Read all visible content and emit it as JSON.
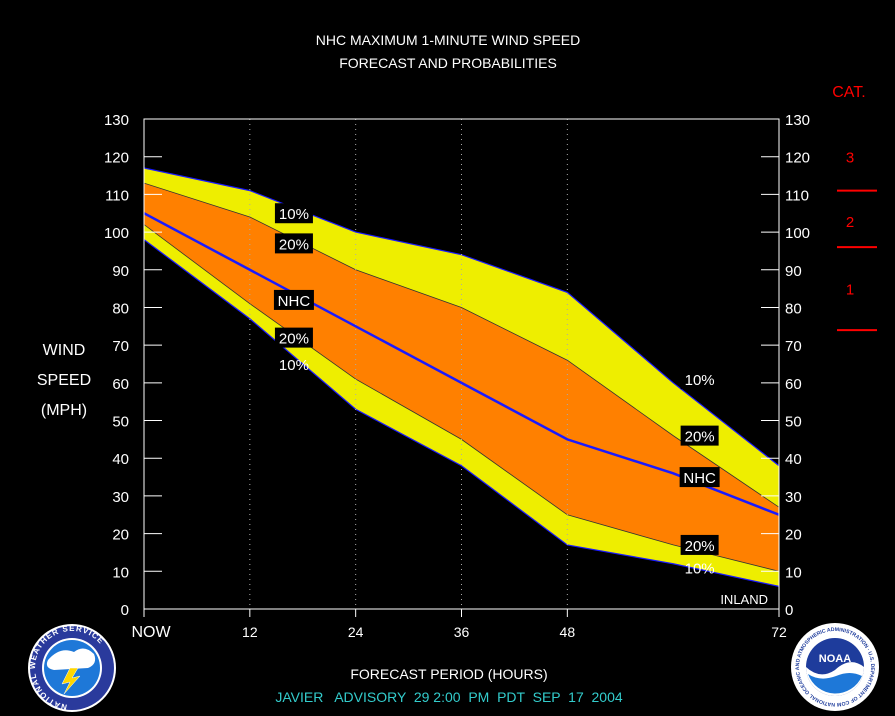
{
  "chart_data": {
    "type": "area",
    "title_line1": "NHC MAXIMUM 1-MINUTE WIND SPEED",
    "title_line2": "FORECAST AND PROBABILITIES",
    "ylabel_lines": [
      "WIND",
      "SPEED",
      "(MPH)"
    ],
    "xlabel": "FORECAST PERIOD (HOURS)",
    "advisory": "JAVIER   ADVISORY  29 2:00  PM  PDT  SEP  17  2004",
    "xlim": [
      0,
      72
    ],
    "ylim": [
      0,
      130
    ],
    "x_ticks": [
      {
        "value": 0,
        "label": "NOW"
      },
      {
        "value": 12,
        "label": "12"
      },
      {
        "value": 24,
        "label": "24"
      },
      {
        "value": 36,
        "label": "36"
      },
      {
        "value": 48,
        "label": "48"
      },
      {
        "value": 72,
        "label": "72"
      }
    ],
    "y_ticks": [
      0,
      10,
      20,
      30,
      40,
      50,
      60,
      70,
      80,
      90,
      100,
      110,
      120,
      130
    ],
    "x": [
      0,
      12,
      24,
      36,
      48,
      60,
      72
    ],
    "series": [
      {
        "name": "10%",
        "role": "upper_outer",
        "values": [
          117,
          111,
          100,
          94,
          84,
          60,
          38
        ]
      },
      {
        "name": "20%",
        "role": "upper_inner",
        "values": [
          113,
          104,
          90,
          80,
          66,
          46,
          27
        ]
      },
      {
        "name": "NHC",
        "role": "forecast",
        "values": [
          105,
          90,
          75,
          60,
          45,
          36,
          25
        ]
      },
      {
        "name": "20%",
        "role": "lower_inner",
        "values": [
          102,
          81,
          61,
          45,
          25,
          17,
          10
        ]
      },
      {
        "name": "10%",
        "role": "lower_outer",
        "values": [
          98,
          77,
          53,
          38,
          17,
          12,
          6
        ]
      }
    ],
    "labels": [
      {
        "text": "10%",
        "x": 17,
        "y": 105,
        "box": true
      },
      {
        "text": "20%",
        "x": 17,
        "y": 97,
        "box": true
      },
      {
        "text": "NHC",
        "x": 17,
        "y": 82,
        "box": true
      },
      {
        "text": "20%",
        "x": 17,
        "y": 72,
        "box": true
      },
      {
        "text": "10%",
        "x": 17,
        "y": 65,
        "box": false
      },
      {
        "text": "10%",
        "x": 63,
        "y": 61,
        "box": true
      },
      {
        "text": "20%",
        "x": 63,
        "y": 46,
        "box": true
      },
      {
        "text": "NHC",
        "x": 63,
        "y": 35,
        "box": true
      },
      {
        "text": "20%",
        "x": 63,
        "y": 17,
        "box": true
      },
      {
        "text": "10%",
        "x": 63,
        "y": 11,
        "box": false
      }
    ],
    "inland_label": "INLAND",
    "category": {
      "header": "CAT.",
      "labels": [
        {
          "text": "3",
          "y": 120
        },
        {
          "text": "2",
          "y": 103
        },
        {
          "text": "1",
          "y": 85
        }
      ],
      "thresholds": [
        111,
        96,
        74
      ]
    },
    "colors": {
      "background": "#000000",
      "outer_band": "#eeee00",
      "inner_band": "#ff8000",
      "forecast_line": "#1a1aff",
      "text": "#ffffff",
      "category": "#ff0000",
      "advisory": "#33cccc"
    }
  },
  "logos": {
    "nws_text": "NATIONAL WEATHER SERVICE",
    "noaa_text": "NOAA",
    "noaa_ring_text": "NATIONAL OCEANIC AND ATMOSPHERIC ADMINISTRATION · U.S. DEPARTMENT OF COMMERCE"
  }
}
